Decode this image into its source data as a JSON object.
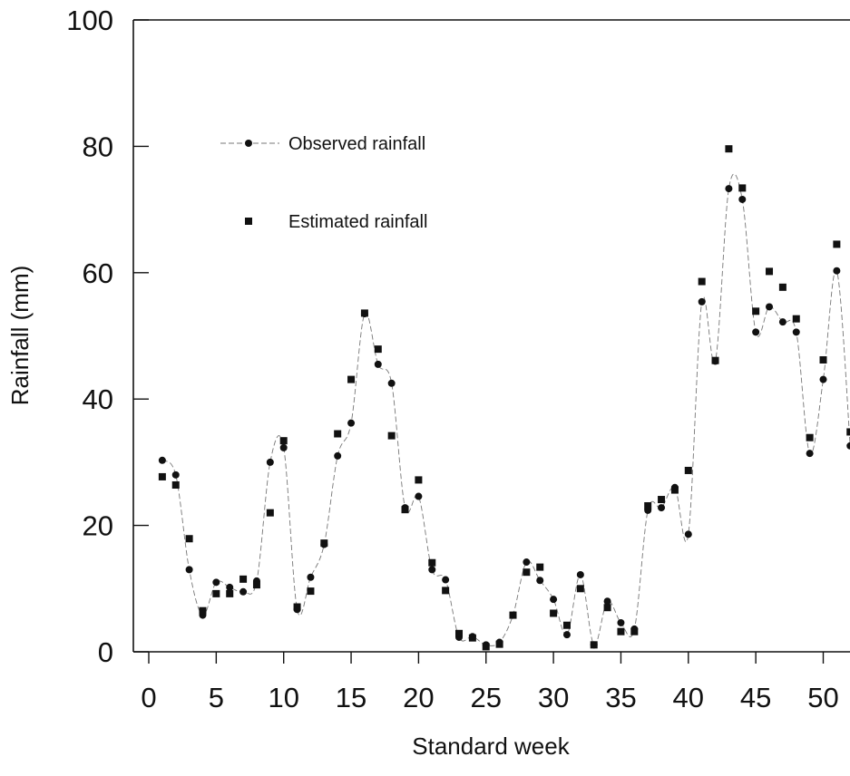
{
  "chart_data": {
    "type": "scatter",
    "title": "",
    "xlabel": "Standard week",
    "ylabel": "Rainfall (mm)",
    "xlim": [
      0,
      52
    ],
    "ylim": [
      0,
      100
    ],
    "xticks": [
      0,
      5,
      10,
      15,
      20,
      25,
      30,
      35,
      40,
      45,
      50
    ],
    "yticks": [
      0,
      20,
      40,
      60,
      80,
      100
    ],
    "grid": false,
    "legend_position": "upper-left",
    "x": [
      1,
      2,
      3,
      4,
      5,
      6,
      7,
      8,
      9,
      10,
      11,
      12,
      13,
      14,
      15,
      16,
      17,
      18,
      19,
      20,
      21,
      22,
      23,
      24,
      25,
      26,
      27,
      28,
      29,
      30,
      31,
      32,
      33,
      34,
      35,
      36,
      37,
      38,
      39,
      40,
      41,
      42,
      43,
      44,
      45,
      46,
      47,
      48,
      49,
      50,
      51,
      52
    ],
    "series": [
      {
        "name": "Observed rainfall",
        "marker": "circle",
        "line": "dashed",
        "color": "#111111",
        "values": [
          30.3,
          28.0,
          13.0,
          5.8,
          11.0,
          10.2,
          9.5,
          11.2,
          30.0,
          32.3,
          6.7,
          11.8,
          17.0,
          31.0,
          36.2,
          53.5,
          45.5,
          42.5,
          22.8,
          24.6,
          13.0,
          11.4,
          2.3,
          2.4,
          1.1,
          1.5,
          5.8,
          14.2,
          11.3,
          8.3,
          2.7,
          12.2,
          1.1,
          8.0,
          4.6,
          3.6,
          22.4,
          22.8,
          26.0,
          18.6,
          55.4,
          46.0,
          73.3,
          71.6,
          50.6,
          54.6,
          52.2,
          50.6,
          31.4,
          43.1,
          60.3,
          32.6
        ]
      },
      {
        "name": "Estimated rainfall",
        "marker": "square",
        "line": "none",
        "color": "#111111",
        "values": [
          27.7,
          26.4,
          17.9,
          6.5,
          9.2,
          9.2,
          11.5,
          10.6,
          22.0,
          33.4,
          7.1,
          9.6,
          17.2,
          34.5,
          43.1,
          53.6,
          47.9,
          34.2,
          22.5,
          27.2,
          14.1,
          9.7,
          2.9,
          2.2,
          0.8,
          1.2,
          5.8,
          12.6,
          13.4,
          6.1,
          4.2,
          10.0,
          1.1,
          7.0,
          3.2,
          3.2,
          23.1,
          24.1,
          25.6,
          28.7,
          58.6,
          46.1,
          79.6,
          73.4,
          53.9,
          60.2,
          57.7,
          52.7,
          33.9,
          46.2,
          64.5,
          34.8
        ]
      }
    ]
  }
}
